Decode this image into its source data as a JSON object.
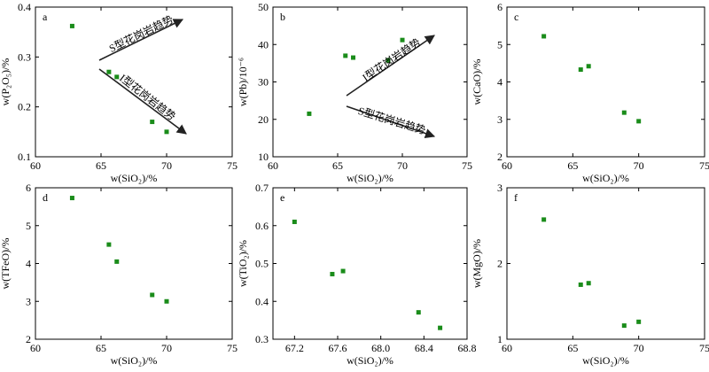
{
  "figure": {
    "point_color": "#1a8c1a",
    "arrow_color": "#222222"
  },
  "chart_data": [
    {
      "panel": "a",
      "type": "scatter",
      "xlabel": "w(SiO₂)/%",
      "ylabel": "w(P₂O₅)/%",
      "xlim": [
        60,
        75
      ],
      "ylim": [
        0.1,
        0.4
      ],
      "xticks": [
        "60",
        "65",
        "70",
        "75"
      ],
      "yticks": [
        "0.1",
        "0.2",
        "0.3",
        "0.4"
      ],
      "points": [
        [
          62.8,
          0.362
        ],
        [
          65.6,
          0.27
        ],
        [
          66.2,
          0.26
        ],
        [
          68.9,
          0.17
        ],
        [
          70.0,
          0.15
        ]
      ],
      "annotations": [
        {
          "text": "S型花岗岩趋势",
          "direction": "up"
        },
        {
          "text": "I型花岗岩趋势",
          "direction": "down"
        }
      ]
    },
    {
      "panel": "b",
      "type": "scatter",
      "xlabel": "w(SiO₂)/%",
      "ylabel": "w(Pb)/10⁻⁶",
      "xlim": [
        60,
        75
      ],
      "ylim": [
        10,
        50
      ],
      "xticks": [
        "60",
        "65",
        "70",
        "75"
      ],
      "yticks": [
        "10",
        "20",
        "30",
        "40",
        "50"
      ],
      "points": [
        [
          62.8,
          21.5
        ],
        [
          65.6,
          37.0
        ],
        [
          66.2,
          36.5
        ],
        [
          68.9,
          35.8
        ],
        [
          70.0,
          41.2
        ]
      ],
      "annotations": [
        {
          "text": "I型花岗岩趋势",
          "direction": "up"
        },
        {
          "text": "S型花岗岩趋势",
          "direction": "down"
        }
      ]
    },
    {
      "panel": "c",
      "type": "scatter",
      "xlabel": "w(SiO₂)/%",
      "ylabel": "w(CaO)/%",
      "xlim": [
        60,
        75
      ],
      "ylim": [
        2,
        6
      ],
      "xticks": [
        "60",
        "65",
        "70",
        "75"
      ],
      "yticks": [
        "2",
        "3",
        "4",
        "5",
        "6"
      ],
      "points": [
        [
          62.8,
          5.22
        ],
        [
          65.6,
          4.33
        ],
        [
          66.2,
          4.42
        ],
        [
          68.9,
          3.18
        ],
        [
          70.0,
          2.95
        ]
      ]
    },
    {
      "panel": "d",
      "type": "scatter",
      "xlabel": "w(SiO₂)/%",
      "ylabel": "w(TFeO)/%",
      "xlim": [
        60,
        75
      ],
      "ylim": [
        2,
        6
      ],
      "xticks": [
        "60",
        "65",
        "70",
        "75"
      ],
      "yticks": [
        "2",
        "3",
        "4",
        "5",
        "6"
      ],
      "points": [
        [
          62.8,
          5.73
        ],
        [
          65.6,
          4.5
        ],
        [
          66.2,
          4.05
        ],
        [
          68.9,
          3.17
        ],
        [
          70.0,
          3.0
        ]
      ]
    },
    {
      "panel": "e",
      "type": "scatter",
      "xlabel": "w(SiO₂)/%",
      "ylabel": "w(TiO₂)/%",
      "xlim": [
        67.0,
        68.8
      ],
      "ylim": [
        0.3,
        0.7
      ],
      "xticks": [
        "67.2",
        "67.6",
        "68.0",
        "68.4",
        "68.8"
      ],
      "yticks": [
        "0.3",
        "0.4",
        "0.5",
        "0.6",
        "0.7"
      ],
      "points": [
        [
          67.2,
          0.61
        ],
        [
          67.55,
          0.472
        ],
        [
          67.65,
          0.48
        ],
        [
          68.35,
          0.371
        ],
        [
          68.55,
          0.33
        ]
      ]
    },
    {
      "panel": "f",
      "type": "scatter",
      "xlabel": "w(SiO₂)/%",
      "ylabel": "w(MgO)/%",
      "xlim": [
        60,
        75
      ],
      "ylim": [
        1,
        3
      ],
      "xticks": [
        "60",
        "65",
        "70",
        "75"
      ],
      "yticks": [
        "1",
        "2",
        "3"
      ],
      "points": [
        [
          62.8,
          2.58
        ],
        [
          65.6,
          1.72
        ],
        [
          66.2,
          1.74
        ],
        [
          68.9,
          1.18
        ],
        [
          70.0,
          1.23
        ]
      ]
    }
  ]
}
